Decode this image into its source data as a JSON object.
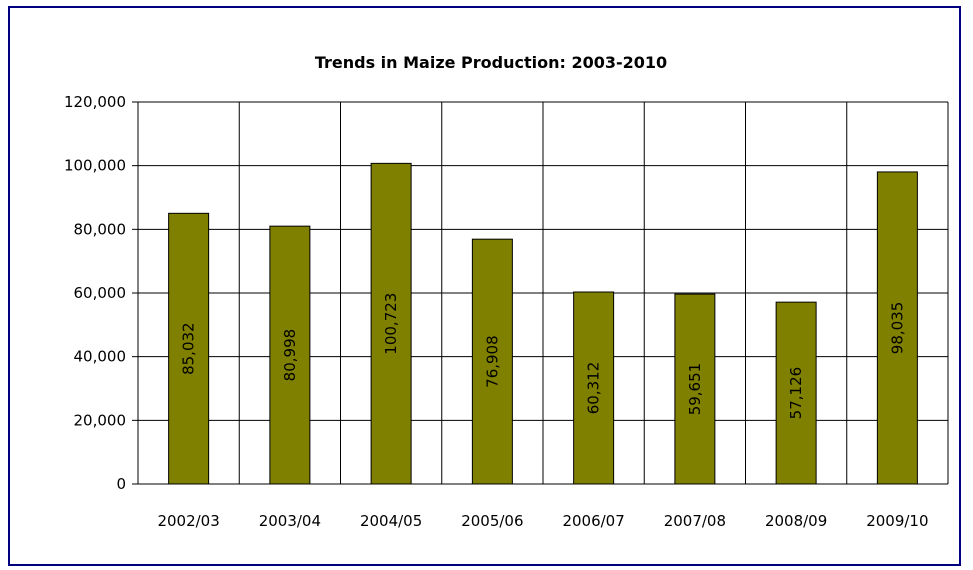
{
  "chart_data": {
    "type": "bar",
    "title": "Trends in Maize Production: 2003-2010",
    "xlabel": "",
    "ylabel": "",
    "categories": [
      "2002/03",
      "2003/04",
      "2004/05",
      "2005/06",
      "2006/07",
      "2007/08",
      "2008/09",
      "2009/10"
    ],
    "values": [
      85032,
      80998,
      100723,
      76908,
      60312,
      59651,
      57126,
      98035
    ],
    "data_labels": [
      "85,032",
      "80,998",
      "100,723",
      "76,908",
      "60,312",
      "59,651",
      "57,126",
      "98,035"
    ],
    "ylim": [
      0,
      120000
    ],
    "y_ticks": [
      0,
      20000,
      40000,
      60000,
      80000,
      100000,
      120000
    ],
    "y_tick_labels": [
      "0",
      "20,000",
      "40,000",
      "60,000",
      "80,000",
      "100,000",
      "120,000"
    ],
    "grid": true,
    "legend": "none",
    "bar_color": "#808000",
    "frame_color": "#000080"
  }
}
